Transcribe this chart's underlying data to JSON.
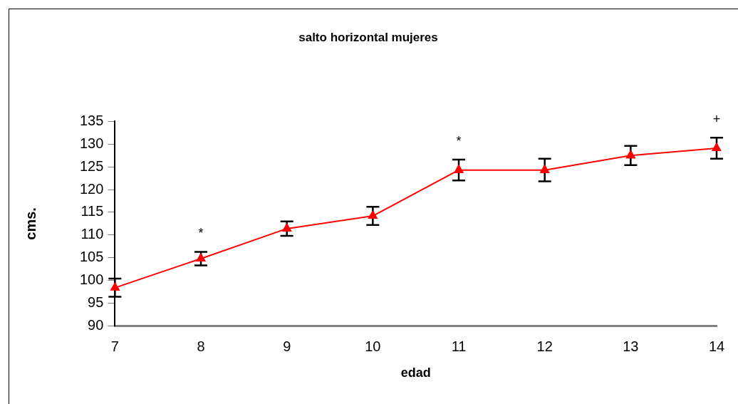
{
  "chart_data": {
    "type": "line",
    "title": "salto horizontal mujeres",
    "xlabel": "edad",
    "ylabel": "cms.",
    "x": [
      7,
      8,
      9,
      10,
      11,
      12,
      13,
      14
    ],
    "series": [
      {
        "color": "#ff0000",
        "values": [
          98.4,
          104.8,
          111.4,
          114.2,
          124.3,
          124.3,
          127.5,
          129.1
        ],
        "errors": [
          2,
          1.5,
          1.6,
          2,
          2.3,
          2.5,
          2.1,
          2.3
        ],
        "value_labels": [
          null,
          "*",
          null,
          null,
          "*",
          null,
          null,
          "+"
        ]
      }
    ],
    "xlim": [
      7,
      14
    ],
    "xticks": [
      7,
      8,
      9,
      10,
      11,
      12,
      13,
      14
    ],
    "ylim": [
      90,
      135
    ],
    "yticks": [
      90,
      95,
      100,
      105,
      110,
      115,
      120,
      125,
      130,
      135
    ],
    "marker": "triangle",
    "line_style": "solid",
    "grid": false,
    "legend": false
  }
}
